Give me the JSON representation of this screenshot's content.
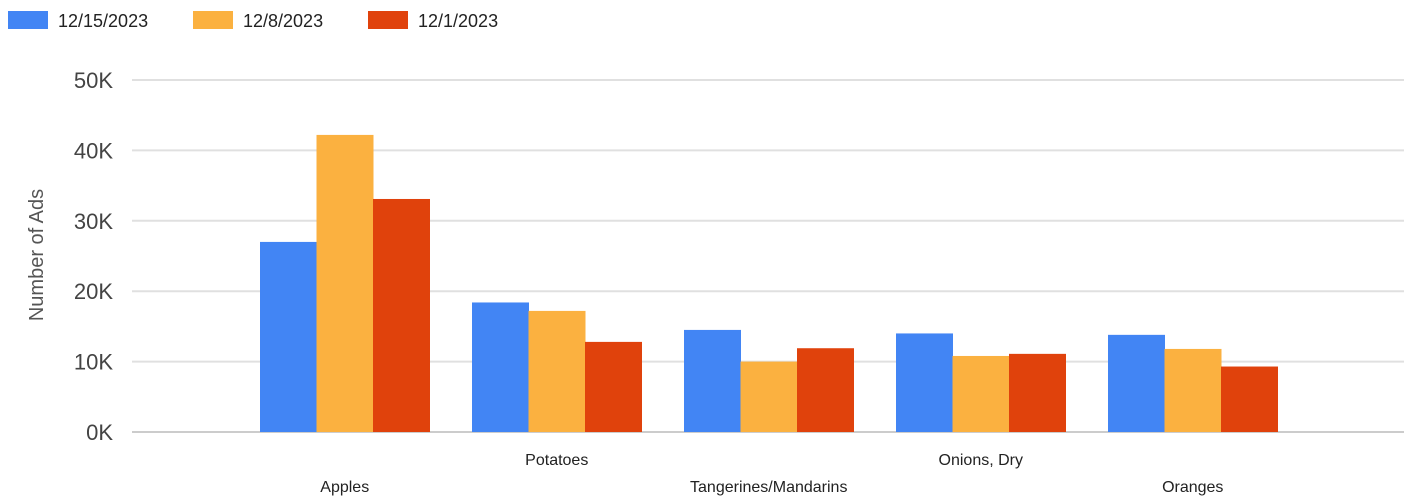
{
  "chart_data": {
    "type": "bar",
    "title": "",
    "xlabel": "",
    "ylabel": "Number of Ads",
    "ylim": [
      0,
      50000
    ],
    "yticks": [
      0,
      10000,
      20000,
      30000,
      40000,
      50000
    ],
    "ytick_labels": [
      "0K",
      "10K",
      "20K",
      "30K",
      "40K",
      "50K"
    ],
    "grid": true,
    "legend_position": "top-left",
    "categories": [
      "Apples",
      "Potatoes",
      "Tangerines/Mandarins",
      "Onions, Dry",
      "Oranges"
    ],
    "series": [
      {
        "name": "12/15/2023",
        "color": "#4285f4",
        "values": [
          27000,
          18400,
          14500,
          14000,
          13800
        ]
      },
      {
        "name": "12/8/2023",
        "color": "#fbb140",
        "values": [
          42200,
          17200,
          10000,
          10800,
          11800
        ]
      },
      {
        "name": "12/1/2023",
        "color": "#e0420c",
        "values": [
          33100,
          12800,
          11900,
          11100,
          9300
        ]
      }
    ]
  }
}
